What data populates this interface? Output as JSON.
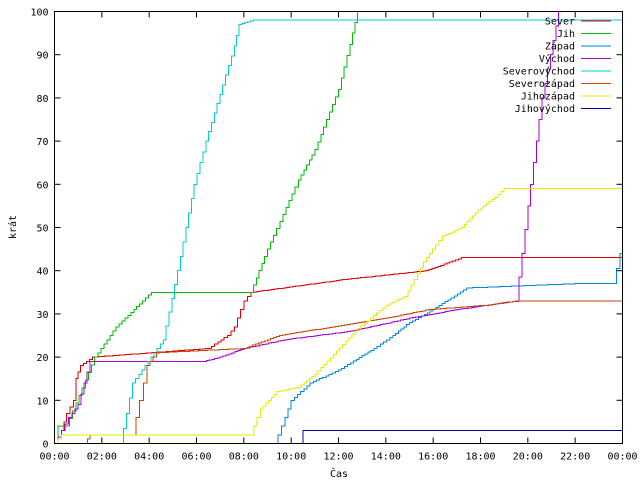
{
  "chart_data": {
    "type": "line",
    "xlabel": "Čas",
    "ylabel": "krát",
    "xlim": [
      0,
      24
    ],
    "ylim": [
      0,
      100
    ],
    "x_unit": "hours",
    "x_ticks": [
      {
        "value": 0,
        "label": "00:00"
      },
      {
        "value": 2,
        "label": "02:00"
      },
      {
        "value": 4,
        "label": "04:00"
      },
      {
        "value": 6,
        "label": "06:00"
      },
      {
        "value": 8,
        "label": "08:00"
      },
      {
        "value": 10,
        "label": "10:00"
      },
      {
        "value": 12,
        "label": "12:00"
      },
      {
        "value": 14,
        "label": "14:00"
      },
      {
        "value": 16,
        "label": "16:00"
      },
      {
        "value": 18,
        "label": "18:00"
      },
      {
        "value": 20,
        "label": "20:00"
      },
      {
        "value": 22,
        "label": "22:00"
      },
      {
        "value": 24,
        "label": "00:00"
      }
    ],
    "y_ticks": [
      {
        "value": 0,
        "label": "0"
      },
      {
        "value": 10,
        "label": "10"
      },
      {
        "value": 20,
        "label": "20"
      },
      {
        "value": 30,
        "label": "30"
      },
      {
        "value": 40,
        "label": "40"
      },
      {
        "value": 50,
        "label": "50"
      },
      {
        "value": 60,
        "label": "60"
      },
      {
        "value": 70,
        "label": "70"
      },
      {
        "value": 80,
        "label": "80"
      },
      {
        "value": 90,
        "label": "90"
      },
      {
        "value": 100,
        "label": "100"
      }
    ],
    "grid": false,
    "legend_position": "top-right",
    "series": [
      {
        "name": "Sever",
        "color": "#dd0000",
        "points": [
          [
            0,
            0
          ],
          [
            0.3,
            3
          ],
          [
            0.4,
            5
          ],
          [
            0.5,
            7
          ],
          [
            0.8,
            10
          ],
          [
            0.9,
            15
          ],
          [
            1.1,
            18
          ],
          [
            1.6,
            20
          ],
          [
            6.5,
            22
          ],
          [
            7.3,
            25
          ],
          [
            7.6,
            27
          ],
          [
            8,
            33
          ],
          [
            8.3,
            35
          ],
          [
            12.3,
            38
          ],
          [
            15.7,
            40
          ],
          [
            17.2,
            43
          ],
          [
            24,
            43
          ]
        ]
      },
      {
        "name": "Jih",
        "color": "#00bb00",
        "points": [
          [
            0,
            0
          ],
          [
            0.15,
            4
          ],
          [
            0.5,
            4
          ],
          [
            1.7,
            20
          ],
          [
            2.6,
            27
          ],
          [
            4.1,
            35
          ],
          [
            8.3,
            35
          ],
          [
            9,
            45
          ],
          [
            10.3,
            61
          ],
          [
            11,
            68
          ],
          [
            12,
            82
          ],
          [
            12.6,
            95
          ],
          [
            12.8,
            100
          ]
        ]
      },
      {
        "name": "Západ",
        "color": "#0088dd",
        "points": [
          [
            9.3,
            0
          ],
          [
            9.6,
            4
          ],
          [
            10,
            10
          ],
          [
            10.8,
            14
          ],
          [
            12,
            17
          ],
          [
            13.5,
            22
          ],
          [
            14.3,
            25
          ],
          [
            15,
            28
          ],
          [
            16,
            31
          ],
          [
            17.4,
            36
          ],
          [
            22,
            37
          ],
          [
            23.6,
            37
          ],
          [
            23.9,
            44
          ],
          [
            24,
            46
          ]
        ]
      },
      {
        "name": "Východ",
        "color": "#aa00dd",
        "points": [
          [
            0,
            0
          ],
          [
            0.3,
            3
          ],
          [
            0.6,
            6
          ],
          [
            1,
            9
          ],
          [
            1.5,
            19
          ],
          [
            6.3,
            19
          ],
          [
            7,
            20
          ],
          [
            8,
            22
          ],
          [
            9.7,
            24
          ],
          [
            12.5,
            26
          ],
          [
            15,
            29
          ],
          [
            17,
            31
          ],
          [
            19.5,
            33
          ],
          [
            20,
            55
          ],
          [
            20.6,
            80
          ],
          [
            21.3,
            100
          ]
        ]
      },
      {
        "name": "Severovýchod",
        "color": "#00cccc",
        "points": [
          [
            2.8,
            0
          ],
          [
            3.3,
            14
          ],
          [
            4.6,
            24
          ],
          [
            5.2,
            40
          ],
          [
            5.9,
            60
          ],
          [
            6.4,
            70
          ],
          [
            7.1,
            83
          ],
          [
            7.6,
            92
          ],
          [
            7.8,
            97
          ],
          [
            8.4,
            98
          ],
          [
            24,
            98
          ]
        ]
      },
      {
        "name": "Severozápad",
        "color": "#cc4400",
        "points": [
          [
            1.3,
            0
          ],
          [
            1.5,
            2
          ],
          [
            3.3,
            2
          ],
          [
            3.6,
            10
          ],
          [
            3.9,
            18
          ],
          [
            4.3,
            21
          ],
          [
            8,
            22
          ],
          [
            9.5,
            25
          ],
          [
            14,
            29
          ],
          [
            15.8,
            31
          ],
          [
            18.2,
            32
          ],
          [
            19.6,
            33
          ],
          [
            24,
            33
          ]
        ]
      },
      {
        "name": "Jihozápad",
        "color": "#e8e800",
        "points": [
          [
            0,
            0
          ],
          [
            0.3,
            2
          ],
          [
            8.3,
            2
          ],
          [
            8.7,
            8
          ],
          [
            9.4,
            12
          ],
          [
            10.3,
            13
          ],
          [
            11,
            16
          ],
          [
            12.7,
            26
          ],
          [
            14,
            32
          ],
          [
            14.8,
            34
          ],
          [
            15.6,
            42
          ],
          [
            16.1,
            46
          ],
          [
            16.4,
            48
          ],
          [
            17.2,
            50
          ],
          [
            17.9,
            54
          ],
          [
            18.6,
            57
          ],
          [
            19,
            59
          ],
          [
            24,
            59
          ]
        ]
      },
      {
        "name": "Jihovýchod",
        "color": "#0000aa",
        "points": [
          [
            10.4,
            0
          ],
          [
            10.5,
            3
          ],
          [
            24,
            3
          ]
        ]
      }
    ]
  }
}
